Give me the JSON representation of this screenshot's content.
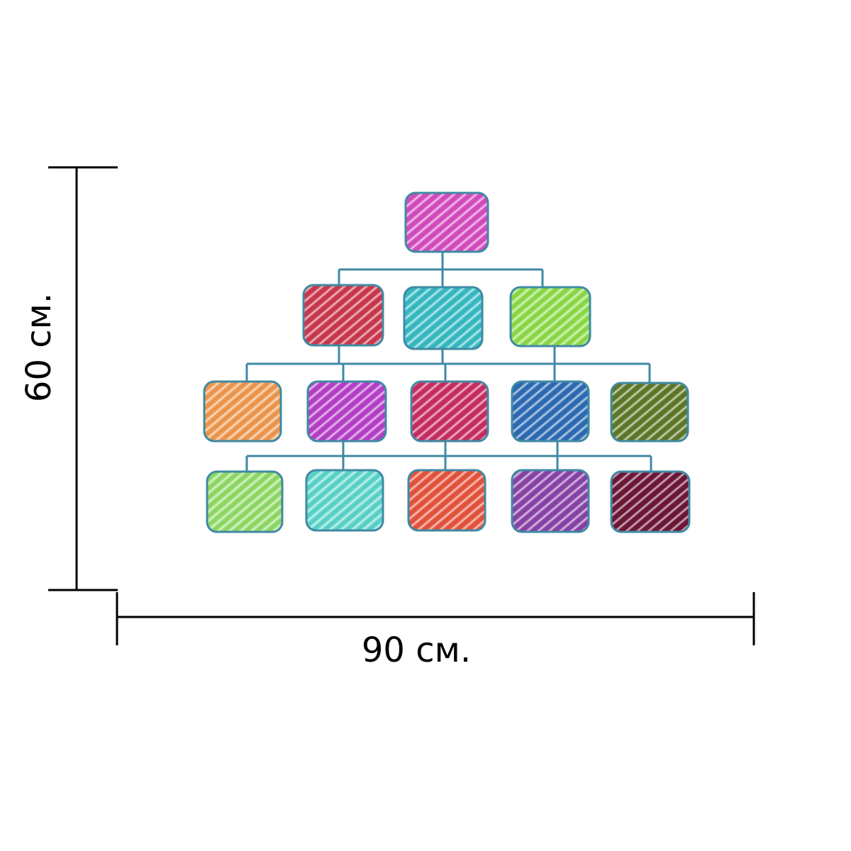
{
  "dimensions": {
    "height": "60 см.",
    "width": "90 см."
  }
}
